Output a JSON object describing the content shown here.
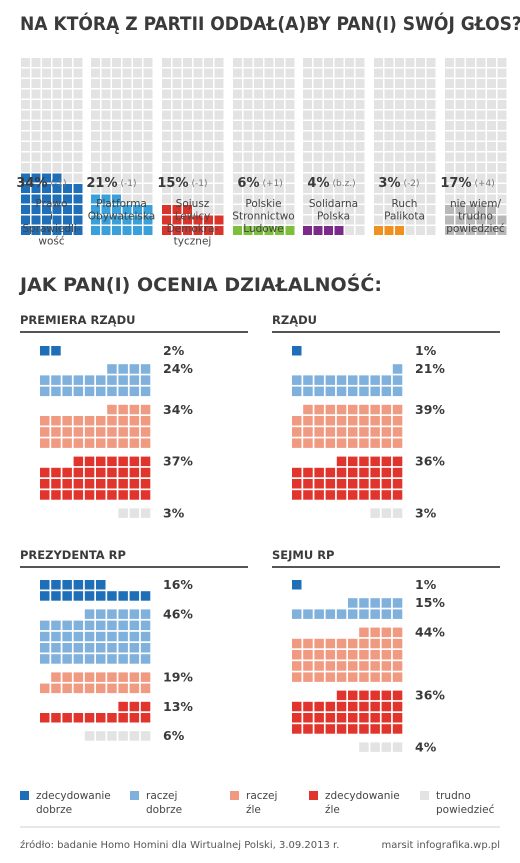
{
  "colors": {
    "party_blue": "#1f6fb8",
    "party_light_blue": "#39a0d9",
    "party_red": "#d9342b",
    "party_green": "#7cbf3a",
    "party_purple": "#7b2a8a",
    "party_orange": "#f0901e",
    "party_gray": "#b8b8b8",
    "empty": "#e3e3e3",
    "dark_blue": "#1f6fb8",
    "light_blue": "#7fb1dc",
    "salmon": "#f09a82",
    "red": "#e0342c",
    "gray": "#e3e3e3",
    "text": "#333333"
  },
  "chart_data": [
    {
      "type": "waffle",
      "title": "NA KTÓRĄ Z PARTII ODDAŁ(A)BY PAN(I) SWÓJ GŁOS?",
      "categories": [
        "Prawo i Sprawiedli-wość",
        "Platforma Obywatelska",
        "Sojusz Lewicy Demokra-tycznej",
        "Polskie Stronnictwo Ludowe",
        "Solidarna Polska",
        "Ruch Palikota",
        "nie wiem/ trudno powiedzieć"
      ],
      "values": [
        34,
        21,
        15,
        6,
        4,
        3,
        17
      ],
      "changes": [
        "(-1)",
        "(-1)",
        "(-1)",
        "(+1)",
        "(b.z.)",
        "(-2)",
        "(+4)"
      ],
      "parties": [
        {
          "name_lines": [
            "Prawo",
            "i",
            "Sprawiedli-",
            "wość"
          ],
          "pct": 34,
          "pct_label": "34%",
          "change": "(-1)",
          "color_key": "party_blue"
        },
        {
          "name_lines": [
            "Platforma",
            "Obywatelska"
          ],
          "pct": 21,
          "pct_label": "21%",
          "change": "(-1)",
          "color_key": "party_light_blue"
        },
        {
          "name_lines": [
            "Sojusz",
            "Lewicy",
            "Demokra-",
            "tycznej"
          ],
          "pct": 15,
          "pct_label": "15%",
          "change": "(-1)",
          "color_key": "party_red"
        },
        {
          "name_lines": [
            "Polskie",
            "Stronnictwo",
            "Ludowe"
          ],
          "pct": 6,
          "pct_label": "6%",
          "change": "(+1)",
          "color_key": "party_green"
        },
        {
          "name_lines": [
            "Solidarna",
            "Polska"
          ],
          "pct": 4,
          "pct_label": "4%",
          "change": "(b.z.)",
          "color_key": "party_purple"
        },
        {
          "name_lines": [
            "Ruch",
            "Palikota"
          ],
          "pct": 3,
          "pct_label": "3%",
          "change": "(-2)",
          "color_key": "party_orange"
        },
        {
          "name_lines": [
            "nie wiem/",
            "trudno",
            "powiedzieć"
          ],
          "pct": 17,
          "pct_label": "17%",
          "change": "(+4)",
          "color_key": "party_gray"
        }
      ]
    },
    {
      "type": "waffle",
      "title": "JAK PAN(I) OCENIA DZIAŁALNOŚĆ:",
      "categories": [
        "zdecydowanie dobrze",
        "raczej dobrze",
        "raczej źle",
        "zdecydowanie źle",
        "trudno powiedzieć"
      ],
      "panels": [
        {
          "title": "PREMIERA RZĄDU",
          "values": [
            2,
            24,
            34,
            37,
            3
          ],
          "labels": [
            "2%",
            "24%",
            "34%",
            "37%",
            "3%"
          ]
        },
        {
          "title": "RZĄDU",
          "values": [
            1,
            21,
            39,
            36,
            3
          ],
          "labels": [
            "1%",
            "21%",
            "39%",
            "36%",
            "3%"
          ]
        },
        {
          "title": "PREZYDENTA RP",
          "values": [
            16,
            46,
            19,
            13,
            6
          ],
          "labels": [
            "16%",
            "46%",
            "19%",
            "13%",
            "6%"
          ]
        },
        {
          "title": "SEJMU RP",
          "values": [
            1,
            15,
            44,
            36,
            4
          ],
          "labels": [
            "1%",
            "15%",
            "44%",
            "36%",
            "4%"
          ]
        }
      ],
      "legend": [
        {
          "lines": [
            "zdecydowanie",
            "dobrze"
          ],
          "color_key": "dark_blue"
        },
        {
          "lines": [
            "raczej",
            "dobrze"
          ],
          "color_key": "light_blue"
        },
        {
          "lines": [
            "raczej",
            "źle"
          ],
          "color_key": "salmon"
        },
        {
          "lines": [
            "zdecydowanie",
            "źle"
          ],
          "color_key": "red"
        },
        {
          "lines": [
            "trudno",
            "powiedzieć"
          ],
          "color_key": "gray"
        }
      ]
    }
  ],
  "footer": {
    "source": "źródło: badanie Homo Homini dla Wirtualnej Polski, 3.09.2013 r.",
    "credit": "marsit infografika.wp.pl"
  }
}
